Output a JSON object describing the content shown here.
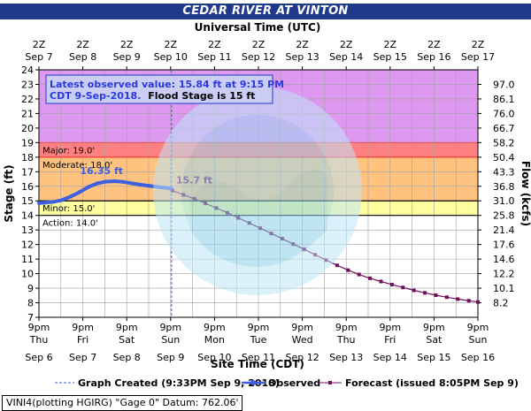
{
  "title": "CEDAR RIVER AT VINTON",
  "top_axis_label": "Universal Time (UTC)",
  "bottom_axis_label": "Site Time (CDT)",
  "footer": "VINI4(plotting HGIRG) \"Gage 0\" Datum: 762.06'",
  "observed_callout": {
    "line1": "Latest observed value: 15.84 ft at 9:15 PM",
    "line2a": "CDT 9-Sep-2018.",
    "line2b": "Flood Stage is 15 ft"
  },
  "legend": {
    "graph_created": "Graph Created (9:33PM Sep 9, 2018)",
    "observed": "Observed",
    "forecast": "Forecast (issued 8:05PM Sep 9)"
  },
  "colors": {
    "title_bg": "#1f3a8a",
    "major": "#dd99f0",
    "major_line": "#e06060",
    "moderate": "#ff8080",
    "minor": "#ffc27f",
    "action": "#ffff9f",
    "normal": "#ffffff",
    "observed": "#3d5fe0",
    "forecast": "#70105a",
    "callout_bg": "#cccdf5",
    "callout_border": "#4050d0",
    "callout_text": "#2a3adf",
    "grid": "#a0a0a0",
    "created_line": "#3d5fe0"
  },
  "chart_data": {
    "type": "line",
    "title": "CEDAR RIVER AT VINTON",
    "ylabel": "Stage (ft)",
    "y2label": "Flow (kcfs)",
    "xlabel": "Site Time (CDT)",
    "x_top_label": "Universal Time (UTC)",
    "ylim": [
      7,
      24
    ],
    "y_ticks": [
      7,
      8,
      9,
      10,
      11,
      12,
      13,
      14,
      15,
      16,
      17,
      18,
      19,
      20,
      21,
      22,
      23,
      24
    ],
    "y2_ticks": [
      {
        "stage": 8,
        "label": "8.2"
      },
      {
        "stage": 9,
        "label": "10.1"
      },
      {
        "stage": 10,
        "label": "12.2"
      },
      {
        "stage": 11,
        "label": "14.6"
      },
      {
        "stage": 12,
        "label": "17.6"
      },
      {
        "stage": 13,
        "label": "21.4"
      },
      {
        "stage": 14,
        "label": "25.8"
      },
      {
        "stage": 15,
        "label": "31.0"
      },
      {
        "stage": 16,
        "label": "36.8"
      },
      {
        "stage": 17,
        "label": "43.3"
      },
      {
        "stage": 18,
        "label": "50.4"
      },
      {
        "stage": 19,
        "label": "58.2"
      },
      {
        "stage": 20,
        "label": "66.7"
      },
      {
        "stage": 21,
        "label": "76.0"
      },
      {
        "stage": 22,
        "label": "86.1"
      },
      {
        "stage": 23,
        "label": "97.0"
      }
    ],
    "x_range_days": [
      6.875,
      16.875
    ],
    "x_bottom_ticks": [
      {
        "day": 6.875,
        "time": "9pm",
        "dow": "Thu",
        "date": "Sep 6"
      },
      {
        "day": 7.875,
        "time": "9pm",
        "dow": "Fri",
        "date": "Sep 7"
      },
      {
        "day": 8.875,
        "time": "9pm",
        "dow": "Sat",
        "date": "Sep 8"
      },
      {
        "day": 9.875,
        "time": "9pm",
        "dow": "Sun",
        "date": "Sep 9"
      },
      {
        "day": 10.875,
        "time": "9pm",
        "dow": "Mon",
        "date": "Sep 10"
      },
      {
        "day": 11.875,
        "time": "9pm",
        "dow": "Tue",
        "date": "Sep 11"
      },
      {
        "day": 12.875,
        "time": "9pm",
        "dow": "Wed",
        "date": "Sep 12"
      },
      {
        "day": 13.875,
        "time": "9pm",
        "dow": "Thu",
        "date": "Sep 13"
      },
      {
        "day": 14.875,
        "time": "9pm",
        "dow": "Fri",
        "date": "Sep 14"
      },
      {
        "day": 15.875,
        "time": "9pm",
        "dow": "Sat",
        "date": "Sep 15"
      },
      {
        "day": 16.875,
        "time": "9pm",
        "dow": "Sun",
        "date": "Sep 16"
      }
    ],
    "x_top_ticks": [
      {
        "time": "2Z",
        "date": "Sep 7"
      },
      {
        "time": "2Z",
        "date": "Sep 8"
      },
      {
        "time": "2Z",
        "date": "Sep 9"
      },
      {
        "time": "2Z",
        "date": "Sep 10"
      },
      {
        "time": "2Z",
        "date": "Sep 11"
      },
      {
        "time": "2Z",
        "date": "Sep 12"
      },
      {
        "time": "2Z",
        "date": "Sep 13"
      },
      {
        "time": "2Z",
        "date": "Sep 14"
      },
      {
        "time": "2Z",
        "date": "Sep 15"
      },
      {
        "time": "2Z",
        "date": "Sep 16"
      },
      {
        "time": "2Z",
        "date": "Sep 17"
      }
    ],
    "flood_categories": [
      {
        "name": "Major",
        "label": "Major: 19.0'",
        "stage": 19.0
      },
      {
        "name": "Moderate",
        "label": "Moderate: 18.0'",
        "stage": 18.0
      },
      {
        "name": "Minor",
        "label": "Minor: 15.0'",
        "stage": 15.0
      },
      {
        "name": "Action",
        "label": "Action: 14.0'",
        "stage": 14.0
      }
    ],
    "graph_created_day": 9.896,
    "observed_peak_label": "16.35 ft",
    "observed_peak": {
      "day": 8.3,
      "stage": 16.35
    },
    "forecast_start_label": "15.7 ft",
    "forecast_start": {
      "day": 9.917,
      "stage": 15.7
    },
    "series": [
      {
        "name": "Observed",
        "x": [
          6.875,
          7.0,
          7.2,
          7.4,
          7.6,
          7.8,
          8.0,
          8.2,
          8.4,
          8.6,
          8.8,
          9.0,
          9.2,
          9.4,
          9.6,
          9.8,
          9.885
        ],
        "y": [
          14.85,
          14.87,
          14.93,
          15.05,
          15.3,
          15.6,
          15.95,
          16.2,
          16.32,
          16.35,
          16.3,
          16.2,
          16.1,
          16.02,
          15.95,
          15.88,
          15.84
        ]
      },
      {
        "name": "Forecast",
        "x": [
          9.917,
          10.167,
          10.417,
          10.667,
          10.917,
          11.167,
          11.417,
          11.667,
          11.917,
          12.167,
          12.417,
          12.667,
          12.917,
          13.167,
          13.417,
          13.667,
          13.917,
          14.167,
          14.417,
          14.667,
          14.917,
          15.167,
          15.417,
          15.667,
          15.917,
          16.167,
          16.417,
          16.667,
          16.875
        ],
        "y": [
          15.7,
          15.42,
          15.13,
          14.83,
          14.5,
          14.18,
          13.83,
          13.48,
          13.12,
          12.76,
          12.4,
          12.03,
          11.67,
          11.3,
          10.93,
          10.57,
          10.24,
          9.94,
          9.68,
          9.46,
          9.25,
          9.05,
          8.85,
          8.68,
          8.52,
          8.38,
          8.25,
          8.14,
          8.05
        ]
      }
    ]
  }
}
